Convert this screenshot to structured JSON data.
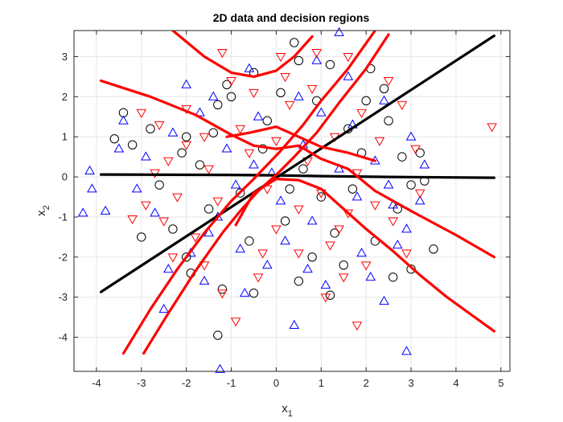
{
  "chart_data": {
    "type": "scatter",
    "title": "2D data and decision regions",
    "xlabel": {
      "base": "x",
      "sub": "1"
    },
    "ylabel": {
      "base": "x",
      "sub": "2"
    },
    "xlim": [
      -4.5,
      5.2
    ],
    "ylim": [
      -4.85,
      3.65
    ],
    "xticks": [
      -4,
      -3,
      -2,
      -1,
      0,
      1,
      2,
      3,
      4,
      5
    ],
    "yticks": [
      -4,
      -3,
      -2,
      -1,
      0,
      1,
      2,
      3
    ],
    "grid": true,
    "colors": {
      "black": "#000000",
      "blue": "#0000ff",
      "red": "#ff0000",
      "axis": "#262626",
      "grid": "#e6e6e6"
    },
    "series": [
      {
        "marker": "circle",
        "color": "#000000",
        "points": [
          [
            -3.4,
            1.6
          ],
          [
            -3.6,
            0.95
          ],
          [
            -2.0,
            1.0
          ],
          [
            -1.3,
            1.8
          ],
          [
            -1.1,
            2.3
          ],
          [
            -0.5,
            2.6
          ],
          [
            0.4,
            3.35
          ],
          [
            0.5,
            2.9
          ],
          [
            1.2,
            2.8
          ],
          [
            2.0,
            1.9
          ],
          [
            2.4,
            2.2
          ],
          [
            2.8,
            0.5
          ],
          [
            3.0,
            -0.2
          ],
          [
            3.5,
            -1.8
          ],
          [
            3.0,
            -2.3
          ],
          [
            1.5,
            -2.2
          ],
          [
            1.2,
            -2.95
          ],
          [
            0.5,
            -2.6
          ],
          [
            -0.5,
            -2.9
          ],
          [
            -1.2,
            -2.8
          ],
          [
            -1.3,
            -3.95
          ],
          [
            -2.0,
            -2.0
          ],
          [
            -3.0,
            -1.5
          ],
          [
            -3.2,
            0.8
          ],
          [
            -0.2,
            1.4
          ],
          [
            0.6,
            0.2
          ],
          [
            1.0,
            -0.5
          ],
          [
            -0.8,
            -0.4
          ],
          [
            0.2,
            -1.1
          ],
          [
            1.6,
            1.2
          ],
          [
            2.5,
            1.4
          ],
          [
            -1.7,
            0.3
          ],
          [
            -2.6,
            -0.2
          ],
          [
            2.2,
            -1.6
          ],
          [
            -0.6,
            -1.6
          ],
          [
            0.9,
            1.9
          ],
          [
            -1.4,
            1.1
          ],
          [
            1.9,
            0.6
          ],
          [
            -2.3,
            -1.3
          ],
          [
            0.1,
            2.1
          ],
          [
            2.7,
            -0.8
          ],
          [
            -0.3,
            0.7
          ],
          [
            1.3,
            -1.4
          ],
          [
            -1.9,
            -2.4
          ],
          [
            3.3,
            -0.1
          ],
          [
            -2.8,
            1.2
          ],
          [
            0.8,
            -2.0
          ],
          [
            1.7,
            -0.3
          ],
          [
            -1.0,
            2.0
          ],
          [
            2.1,
            2.7
          ],
          [
            2.6,
            -2.5
          ],
          [
            0.3,
            -0.3
          ],
          [
            -1.5,
            -0.8
          ],
          [
            3.2,
            0.6
          ],
          [
            -2.1,
            0.6
          ]
        ]
      },
      {
        "marker": "triangle-up",
        "color": "#0000ff",
        "points": [
          [
            -4.3,
            -0.9
          ],
          [
            -3.8,
            -0.85
          ],
          [
            -4.15,
            0.15
          ],
          [
            -4.1,
            -0.3
          ],
          [
            -3.4,
            1.4
          ],
          [
            -3.5,
            0.7
          ],
          [
            -2.5,
            -3.3
          ],
          [
            -1.25,
            -4.8
          ],
          [
            -1.5,
            -1.4
          ],
          [
            -1.4,
            2.0
          ],
          [
            0.4,
            -3.7
          ],
          [
            1.4,
            3.6
          ],
          [
            2.6,
            -0.7
          ],
          [
            2.9,
            -4.35
          ],
          [
            2.4,
            -3.1
          ],
          [
            3.2,
            -0.6
          ],
          [
            3.3,
            0.3
          ],
          [
            1.0,
            1.6
          ],
          [
            -0.5,
            0.3
          ],
          [
            -0.8,
            -1.8
          ],
          [
            0.5,
            2.0
          ],
          [
            -2.7,
            -0.9
          ],
          [
            -2.0,
            2.3
          ],
          [
            1.9,
            -1.9
          ],
          [
            2.2,
            0.4
          ],
          [
            -0.2,
            -2.2
          ],
          [
            0.8,
            -1.1
          ],
          [
            -1.1,
            0.7
          ],
          [
            2.4,
            1.9
          ],
          [
            -3.1,
            -0.3
          ],
          [
            1.6,
            2.5
          ],
          [
            -1.6,
            -2.6
          ],
          [
            0.1,
            -0.6
          ],
          [
            2.9,
            -1.3
          ],
          [
            -2.3,
            1.1
          ],
          [
            1.1,
            -2.7
          ],
          [
            -0.4,
            1.5
          ],
          [
            3.0,
            1.0
          ],
          [
            -0.9,
            -0.2
          ],
          [
            0.6,
            0.8
          ],
          [
            1.8,
            -0.5
          ],
          [
            -1.9,
            -1.9
          ],
          [
            2.1,
            -2.5
          ],
          [
            -0.6,
            2.7
          ],
          [
            -2.9,
            0.5
          ],
          [
            1.4,
            0.2
          ],
          [
            0.2,
            -1.6
          ],
          [
            -1.3,
            -1.0
          ],
          [
            2.7,
            -1.7
          ],
          [
            0.9,
            2.9
          ],
          [
            -2.4,
            -2.3
          ],
          [
            1.7,
            1.3
          ],
          [
            -0.1,
            0.1
          ],
          [
            0.7,
            -2.3
          ],
          [
            -1.7,
            1.6
          ],
          [
            2.5,
            -0.2
          ],
          [
            -0.7,
            -2.9
          ]
        ]
      },
      {
        "marker": "triangle-down",
        "color": "#ff0000",
        "points": [
          [
            -3.0,
            1.6
          ],
          [
            -2.7,
            0.1
          ],
          [
            -2.5,
            -1.1
          ],
          [
            -1.6,
            -2.2
          ],
          [
            -0.9,
            -3.6
          ],
          [
            -1.2,
            3.1
          ],
          [
            -0.5,
            2.1
          ],
          [
            0.1,
            3.0
          ],
          [
            0.9,
            3.1
          ],
          [
            1.6,
            3.0
          ],
          [
            2.8,
            1.8
          ],
          [
            3.2,
            -0.4
          ],
          [
            4.8,
            1.25
          ],
          [
            1.8,
            -3.7
          ],
          [
            1.5,
            -2.5
          ],
          [
            1.2,
            -1.7
          ],
          [
            -2.2,
            -0.5
          ],
          [
            -3.2,
            -1.05
          ],
          [
            0.2,
            2.5
          ],
          [
            -2.0,
            0.8
          ],
          [
            2.3,
            0.9
          ],
          [
            -1.3,
            -0.6
          ],
          [
            0.5,
            -1.9
          ],
          [
            1.9,
            1.6
          ],
          [
            -0.8,
            1.2
          ],
          [
            1.0,
            -0.4
          ],
          [
            -2.6,
            1.3
          ],
          [
            2.6,
            -1.1
          ],
          [
            -1.8,
            -1.5
          ],
          [
            0.0,
            -1.3
          ],
          [
            1.3,
            1.0
          ],
          [
            -0.4,
            -2.5
          ],
          [
            2.0,
            -2.2
          ],
          [
            -1.0,
            2.4
          ],
          [
            0.7,
            0.4
          ],
          [
            -2.3,
            -2.0
          ],
          [
            1.6,
            -0.9
          ],
          [
            2.5,
            2.4
          ],
          [
            -1.5,
            0.2
          ],
          [
            0.3,
            1.8
          ],
          [
            -0.2,
            -0.3
          ],
          [
            2.9,
            -1.9
          ],
          [
            -2.9,
            -0.7
          ],
          [
            1.1,
            -3.0
          ],
          [
            -0.6,
            0.6
          ],
          [
            1.8,
            0.1
          ],
          [
            -1.2,
            -2.9
          ],
          [
            0.8,
            2.2
          ],
          [
            -2.0,
            1.7
          ],
          [
            2.2,
            -0.7
          ],
          [
            -0.3,
            -1.9
          ],
          [
            1.4,
            -1.3
          ],
          [
            -1.6,
            1.0
          ],
          [
            0.5,
            -0.8
          ],
          [
            3.1,
            0.7
          ],
          [
            -2.4,
            0.4
          ],
          [
            0.0,
            0.9
          ]
        ]
      }
    ],
    "lines": [
      {
        "color": "#000000",
        "points": [
          [
            -3.9,
            -2.87
          ],
          [
            4.85,
            3.52
          ]
        ]
      },
      {
        "color": "#000000",
        "points": [
          [
            -3.9,
            0.06
          ],
          [
            -1.0,
            0.05
          ],
          [
            0.0,
            0.04
          ],
          [
            1.0,
            0.02
          ],
          [
            2.5,
            0.0
          ],
          [
            4.85,
            -0.02
          ]
        ]
      },
      {
        "color": "#ff0000",
        "points": [
          [
            -3.4,
            -4.4
          ],
          [
            -2.8,
            -3.3
          ],
          [
            -2.2,
            -2.3
          ],
          [
            -1.6,
            -1.4
          ],
          [
            -1.0,
            -0.6
          ],
          [
            -0.5,
            -0.05
          ],
          [
            -0.2,
            0.3
          ],
          [
            0.1,
            0.65
          ],
          [
            0.6,
            1.3
          ],
          [
            1.0,
            1.9
          ],
          [
            1.6,
            2.7
          ],
          [
            2.2,
            3.65
          ]
        ]
      },
      {
        "color": "#ff0000",
        "points": [
          [
            -2.95,
            -4.4
          ],
          [
            -2.4,
            -3.4
          ],
          [
            -1.8,
            -2.35
          ],
          [
            -1.2,
            -1.4
          ],
          [
            -0.8,
            -0.85
          ],
          [
            -0.4,
            -0.35
          ],
          [
            0.0,
            0.05
          ],
          [
            0.4,
            0.5
          ],
          [
            0.9,
            1.1
          ],
          [
            1.4,
            1.85
          ],
          [
            2.0,
            2.7
          ],
          [
            2.5,
            3.55
          ]
        ]
      },
      {
        "color": "#ff0000",
        "points": [
          [
            -3.9,
            2.4
          ],
          [
            -2.8,
            2.0
          ],
          [
            -1.8,
            1.55
          ],
          [
            -1.0,
            1.05
          ],
          [
            -0.5,
            0.78
          ],
          [
            0.0,
            0.7
          ],
          [
            0.5,
            0.78
          ],
          [
            1.0,
            0.45
          ],
          [
            1.6,
            0.2
          ],
          [
            2.2,
            -0.35
          ],
          [
            3.0,
            -0.85
          ],
          [
            4.0,
            -1.45
          ],
          [
            4.85,
            -2.0
          ]
        ]
      },
      {
        "color": "#ff0000",
        "points": [
          [
            -0.9,
            -1.2
          ],
          [
            -0.5,
            -0.4
          ],
          [
            0.0,
            -0.05
          ],
          [
            0.5,
            -0.08
          ],
          [
            1.0,
            -0.3
          ],
          [
            1.5,
            -0.8
          ],
          [
            2.0,
            -1.3
          ],
          [
            2.6,
            -1.85
          ],
          [
            3.2,
            -2.45
          ],
          [
            3.8,
            -3.0
          ],
          [
            4.85,
            -3.85
          ]
        ]
      },
      {
        "color": "#ff0000",
        "points": [
          [
            -1.1,
            1.0
          ],
          [
            -0.6,
            1.1
          ],
          [
            0.0,
            1.25
          ],
          [
            0.5,
            1.0
          ],
          [
            1.0,
            0.75
          ],
          [
            1.6,
            0.6
          ],
          [
            2.2,
            0.4
          ]
        ]
      },
      {
        "color": "#ff0000",
        "points": [
          [
            -2.3,
            3.65
          ],
          [
            -1.6,
            3.0
          ],
          [
            -1.0,
            2.6
          ],
          [
            -0.5,
            2.5
          ],
          [
            0.0,
            2.65
          ],
          [
            0.4,
            3.0
          ],
          [
            0.8,
            3.5
          ]
        ]
      }
    ]
  }
}
